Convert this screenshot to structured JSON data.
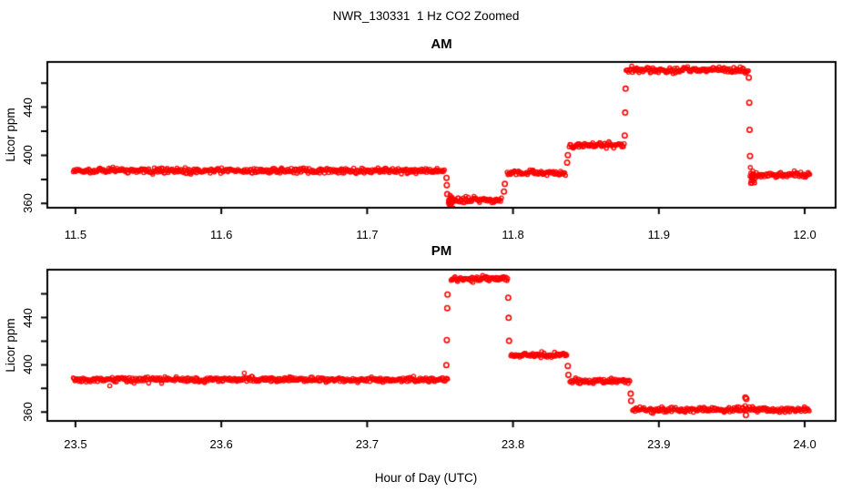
{
  "page": {
    "main_title": "NWR_130331  1 Hz CO2 Zoomed",
    "x_axis_label": "Hour of Day (UTC)",
    "y_axis_label": "Licor ppm"
  },
  "chart_data": {
    "type": "scatter",
    "marker": "open-circle",
    "point_color": "#FF0000",
    "axis_color": "#000000",
    "background": "#FFFFFF",
    "grid": false,
    "legend": false,
    "title": "NWR_130331  1 Hz CO2 Zoomed",
    "xlabel": "Hour of Day (UTC)",
    "ylabel": "Licor ppm",
    "sample_rate_hz": 1,
    "panels": [
      {
        "title": "AM",
        "xlim": [
          11.4807,
          12.0212
        ],
        "ylim": [
          356.5,
          477.5
        ],
        "xticks": [
          11.5,
          11.6,
          11.7,
          11.8,
          11.9,
          12.0
        ],
        "xtick_labels": [
          "11.5",
          "11.6",
          "11.7",
          "11.8",
          "11.9",
          "12.0"
        ],
        "yticks": [
          360,
          380,
          400,
          420,
          440,
          460
        ],
        "ytick_labeled_values": [
          360,
          400,
          440
        ],
        "ytick_labels": [
          "360",
          "400",
          "440"
        ],
        "segments": [
          {
            "x0": 11.4985,
            "x1": 11.7535,
            "y": 387.3,
            "sigma": 1.1
          },
          {
            "x0": 11.7555,
            "x1": 11.759,
            "y": 361.0,
            "sigma": 2.8,
            "dt": 0.00018
          },
          {
            "x0": 11.756,
            "x1": 11.7925,
            "y": 363.0,
            "sigma": 1.1
          },
          {
            "x0": 11.796,
            "x1": 11.8365,
            "y": 385.7,
            "sigma": 1.1
          },
          {
            "x0": 11.8385,
            "x1": 11.8765,
            "y": 408.3,
            "sigma": 1.1
          },
          {
            "x0": 11.8775,
            "x1": 11.9615,
            "y": 470.8,
            "sigma": 1.2
          },
          {
            "x0": 11.9625,
            "x1": 11.966,
            "y": 381.5,
            "sigma": 3.5,
            "dt": 0.00018
          },
          {
            "x0": 11.964,
            "x1": 12.0035,
            "y": 383.8,
            "sigma": 1.1
          }
        ],
        "transition_points": [
          {
            "x": 11.7544,
            "y": 381.3
          },
          {
            "x": 11.7546,
            "y": 375.3
          },
          {
            "x": 11.7549,
            "y": 367.8
          },
          {
            "x": 11.7938,
            "y": 370.0
          },
          {
            "x": 11.7944,
            "y": 376.3
          },
          {
            "x": 11.8371,
            "y": 394.0
          },
          {
            "x": 11.8376,
            "y": 400.2
          },
          {
            "x": 11.8766,
            "y": 416.5
          },
          {
            "x": 11.8769,
            "y": 435.5
          },
          {
            "x": 11.8772,
            "y": 455.3
          },
          {
            "x": 11.9617,
            "y": 464.5
          },
          {
            "x": 11.962,
            "y": 443.7
          },
          {
            "x": 11.9622,
            "y": 421.2
          },
          {
            "x": 11.9625,
            "y": 399.4
          }
        ]
      },
      {
        "title": "PM",
        "xlim": [
          23.4807,
          24.0212
        ],
        "ylim": [
          352.5,
          480.5
        ],
        "xticks": [
          23.5,
          23.6,
          23.7,
          23.8,
          23.9,
          24.0
        ],
        "xtick_labels": [
          "23.5",
          "23.6",
          "23.7",
          "23.8",
          "23.9",
          "24.0"
        ],
        "yticks": [
          360,
          380,
          400,
          420,
          440,
          460
        ],
        "ytick_labeled_values": [
          360,
          400,
          440
        ],
        "ytick_labels": [
          "360",
          "400",
          "440"
        ],
        "segments": [
          {
            "x0": 23.4985,
            "x1": 23.7555,
            "y": 387.5,
            "sigma": 1.1
          },
          {
            "x0": 23.7575,
            "x1": 23.7965,
            "y": 472.8,
            "sigma": 1.2
          },
          {
            "x0": 23.7985,
            "x1": 23.837,
            "y": 408.5,
            "sigma": 1.1
          },
          {
            "x0": 23.839,
            "x1": 23.8805,
            "y": 386.3,
            "sigma": 1.1
          },
          {
            "x0": 23.882,
            "x1": 24.0035,
            "y": 362.0,
            "sigma": 1.1
          }
        ],
        "transition_points": [
          {
            "x": 23.7543,
            "y": 399.8
          },
          {
            "x": 23.7546,
            "y": 421.0
          },
          {
            "x": 23.7549,
            "y": 448.0
          },
          {
            "x": 23.7551,
            "y": 459.5
          },
          {
            "x": 23.7967,
            "y": 456.8
          },
          {
            "x": 23.797,
            "y": 439.8
          },
          {
            "x": 23.7973,
            "y": 420.3
          },
          {
            "x": 23.8376,
            "y": 399.0
          },
          {
            "x": 23.838,
            "y": 391.5
          },
          {
            "x": 23.8807,
            "y": 375.6
          },
          {
            "x": 23.881,
            "y": 369.5
          },
          {
            "x": 23.9593,
            "y": 372.3
          },
          {
            "x": 23.96,
            "y": 371.2
          },
          {
            "x": 23.9597,
            "y": 357.5
          }
        ]
      }
    ]
  }
}
